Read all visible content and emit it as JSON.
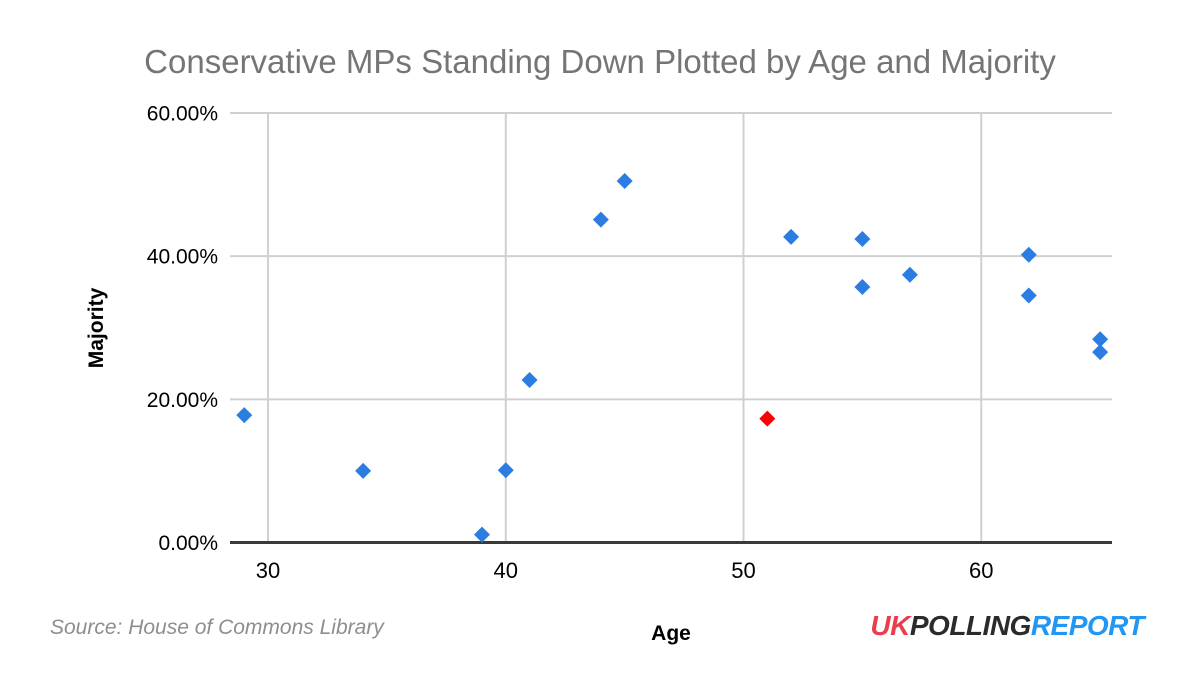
{
  "chart_data": {
    "type": "scatter",
    "title": "Conservative MPs Standing Down Plotted by Age and Majority",
    "xlabel": "Age",
    "ylabel": "Majority",
    "xlim": [
      28.4,
      65.5
    ],
    "ylim": [
      0,
      60
    ],
    "grid": true,
    "legend": "none",
    "marker": "diamond",
    "x_ticks": [
      {
        "value": 30,
        "label": "30"
      },
      {
        "value": 40,
        "label": "40"
      },
      {
        "value": 50,
        "label": "50"
      },
      {
        "value": 60,
        "label": "60"
      }
    ],
    "y_ticks": [
      {
        "value": 0,
        "label": "0.00%"
      },
      {
        "value": 20,
        "label": "20.00%"
      },
      {
        "value": 40,
        "label": "40.00%"
      },
      {
        "value": 60,
        "label": "60.00%"
      }
    ],
    "series": [
      {
        "name": "mps-standing-down-blue",
        "color": "#2b7de1",
        "points": [
          [
            29,
            17.8
          ],
          [
            34,
            10.0
          ],
          [
            39,
            1.1
          ],
          [
            40,
            10.1
          ],
          [
            41,
            22.7
          ],
          [
            44,
            45.1
          ],
          [
            45,
            50.5
          ],
          [
            52,
            42.7
          ],
          [
            55,
            42.4
          ],
          [
            55,
            35.7
          ],
          [
            57,
            37.4
          ],
          [
            62,
            40.2
          ],
          [
            62,
            34.5
          ],
          [
            65,
            28.4
          ],
          [
            65,
            26.6
          ]
        ]
      },
      {
        "name": "highlighted-mp-red",
        "color": "#fe0000",
        "points": [
          [
            51,
            17.3
          ]
        ]
      }
    ],
    "colors": {
      "gridline": "#d0d0d0",
      "axis_line": "#3a3a3a",
      "tick_label": "#000000",
      "axis_title": "#000000",
      "title": "#757575"
    }
  },
  "footer": {
    "source_note": "Source: House of Commons Library",
    "logo": {
      "uk": "UK",
      "polling": "POLLING",
      "report": "REPORT",
      "uk_color": "#ee3c4d",
      "polling_color": "#2b2b2b",
      "report_color": "#2196f3"
    }
  }
}
